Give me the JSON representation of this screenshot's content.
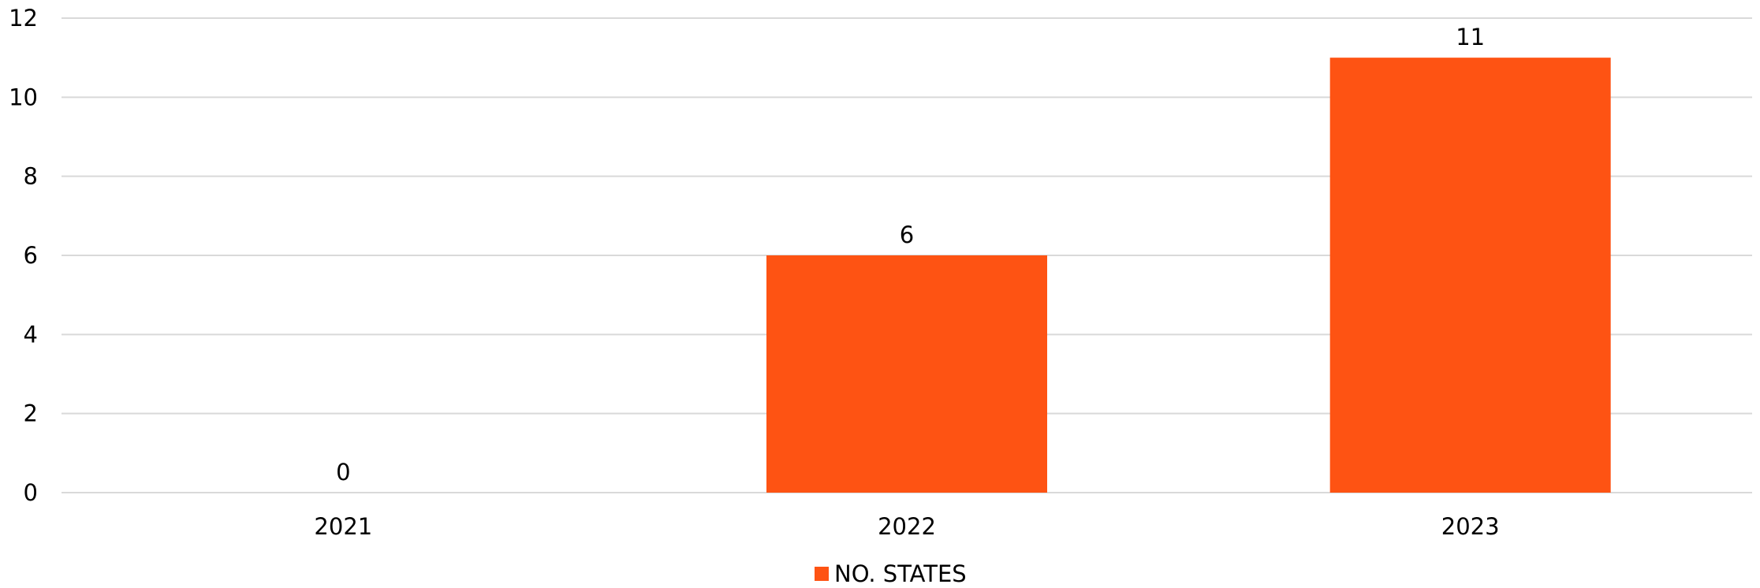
{
  "chart_data": {
    "type": "bar",
    "title": "",
    "xlabel": "",
    "ylabel": "",
    "categories": [
      "2021",
      "2022",
      "2023"
    ],
    "series": [
      {
        "name": "NO. STATES",
        "values": [
          0,
          6,
          11
        ],
        "color": "#fe5313"
      }
    ],
    "ylim": [
      0,
      12
    ],
    "yticks": [
      0,
      2,
      4,
      6,
      8,
      10,
      12
    ],
    "grid": true,
    "data_labels": true,
    "legend": {
      "position": "bottom",
      "entries": [
        "NO. STATES"
      ]
    }
  }
}
